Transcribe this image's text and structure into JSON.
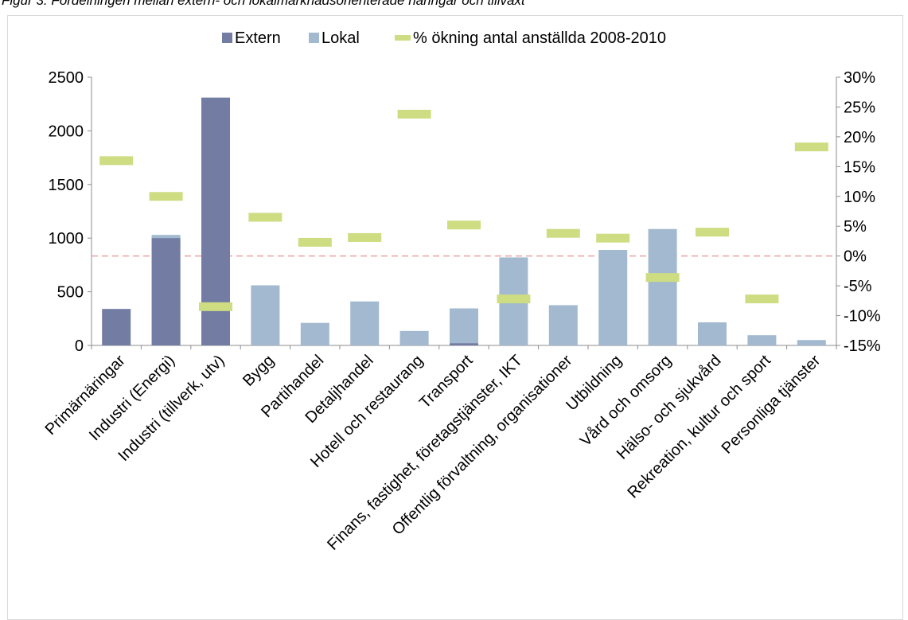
{
  "caption": "Figur 3. Fördelningen mellan extern- och lokalmarknadsorienterade näringar och tillväxt",
  "colors": {
    "extern": "#737da3",
    "lokal": "#a2b9cf",
    "pct": "#cedc82",
    "zero_line": "#e9a3a3",
    "axis": "#8c8c8c"
  },
  "chart_data": {
    "type": "bar",
    "categories": [
      "Primärnäringar",
      "Industri (Energi)",
      "Industri (tillverk, utv)",
      "Bygg",
      "Partihandel",
      "Detaljhandel",
      "Hotell och restaurang",
      "Transport",
      "Finans, fastighet, företagstjänster, IKT",
      "Offentlig förvaltning, organisationer",
      "Utbildning",
      "Vård och omsorg",
      "Hälso- och sjukvård",
      "Rekreation, kultur och sport",
      "Personliga tjänster"
    ],
    "series": [
      {
        "name": "Extern",
        "values": [
          340,
          1000,
          2310,
          0,
          0,
          0,
          0,
          20,
          0,
          0,
          0,
          0,
          0,
          0,
          0
        ]
      },
      {
        "name": "Lokal",
        "values": [
          0,
          1030,
          0,
          560,
          210,
          410,
          135,
          345,
          820,
          375,
          890,
          1085,
          215,
          95,
          50
        ]
      },
      {
        "name": "% ökning antal anställda 2008-2010",
        "axis": "right",
        "values": [
          16,
          10,
          -8.5,
          6.5,
          2.3,
          3.1,
          23.8,
          5.2,
          -7.2,
          3.8,
          3,
          -3.6,
          4,
          -7.2,
          18.3
        ]
      }
    ],
    "ylim": [
      0,
      2500
    ],
    "yticks": [
      0,
      500,
      1000,
      1500,
      2000,
      2500
    ],
    "y2lim": [
      -15,
      30
    ],
    "y2ticks": [
      "-15%",
      "-10%",
      "-5%",
      "0%",
      "5%",
      "10%",
      "15%",
      "20%",
      "25%",
      "30%"
    ],
    "legend_position": "top",
    "grid": false
  }
}
